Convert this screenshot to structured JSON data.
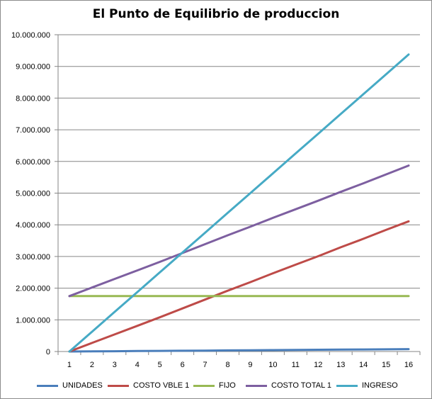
{
  "chart_data": {
    "type": "line",
    "title": "El Punto de Equilibrio de produccion",
    "xlabel": "",
    "ylabel": "",
    "categories": [
      "1",
      "2",
      "3",
      "4",
      "5",
      "6",
      "7",
      "8",
      "9",
      "10",
      "11",
      "12",
      "13",
      "14",
      "15",
      "16"
    ],
    "ylim": [
      0,
      10000000
    ],
    "ytick_values": [
      0,
      1000000,
      2000000,
      3000000,
      4000000,
      5000000,
      6000000,
      7000000,
      8000000,
      9000000,
      10000000
    ],
    "ytick_labels": [
      "0",
      "1.000.000",
      "2.000.000",
      "3.000.000",
      "4.000.000",
      "5.000.000",
      "6.000.000",
      "7.000.000",
      "8.000.000",
      "9.000.000",
      "10.000.000"
    ],
    "grid": true,
    "legend_position": "bottom",
    "series": [
      {
        "name": "UNIDADES",
        "color": "#4a7ebb",
        "values": [
          0,
          5000,
          10000,
          15000,
          20000,
          25000,
          30000,
          35000,
          40000,
          45000,
          50000,
          55000,
          60000,
          65000,
          70000,
          75000
        ]
      },
      {
        "name": "COSTO VBLE 1",
        "color": "#be4b48",
        "values": [
          0,
          270000,
          540000,
          810000,
          1080000,
          1360000,
          1640000,
          1920000,
          2190000,
          2470000,
          2740000,
          3010000,
          3290000,
          3560000,
          3840000,
          4110000
        ]
      },
      {
        "name": "FIJO",
        "color": "#98b954",
        "values": [
          1750000,
          1750000,
          1750000,
          1750000,
          1750000,
          1750000,
          1750000,
          1750000,
          1750000,
          1750000,
          1750000,
          1750000,
          1750000,
          1750000,
          1750000,
          1750000
        ]
      },
      {
        "name": "COSTO TOTAL 1",
        "color": "#7d5fa0",
        "values": [
          1750000,
          2020000,
          2290000,
          2560000,
          2830000,
          3110000,
          3390000,
          3670000,
          3940000,
          4220000,
          4490000,
          4760000,
          5040000,
          5310000,
          5590000,
          5870000
        ]
      },
      {
        "name": "INGRESO",
        "color": "#46aac5",
        "values": [
          0,
          625000,
          1250000,
          1875000,
          2500000,
          3125000,
          3750000,
          4375000,
          5000000,
          5625000,
          6250000,
          6875000,
          7500000,
          8125000,
          8750000,
          9375000
        ]
      }
    ]
  }
}
